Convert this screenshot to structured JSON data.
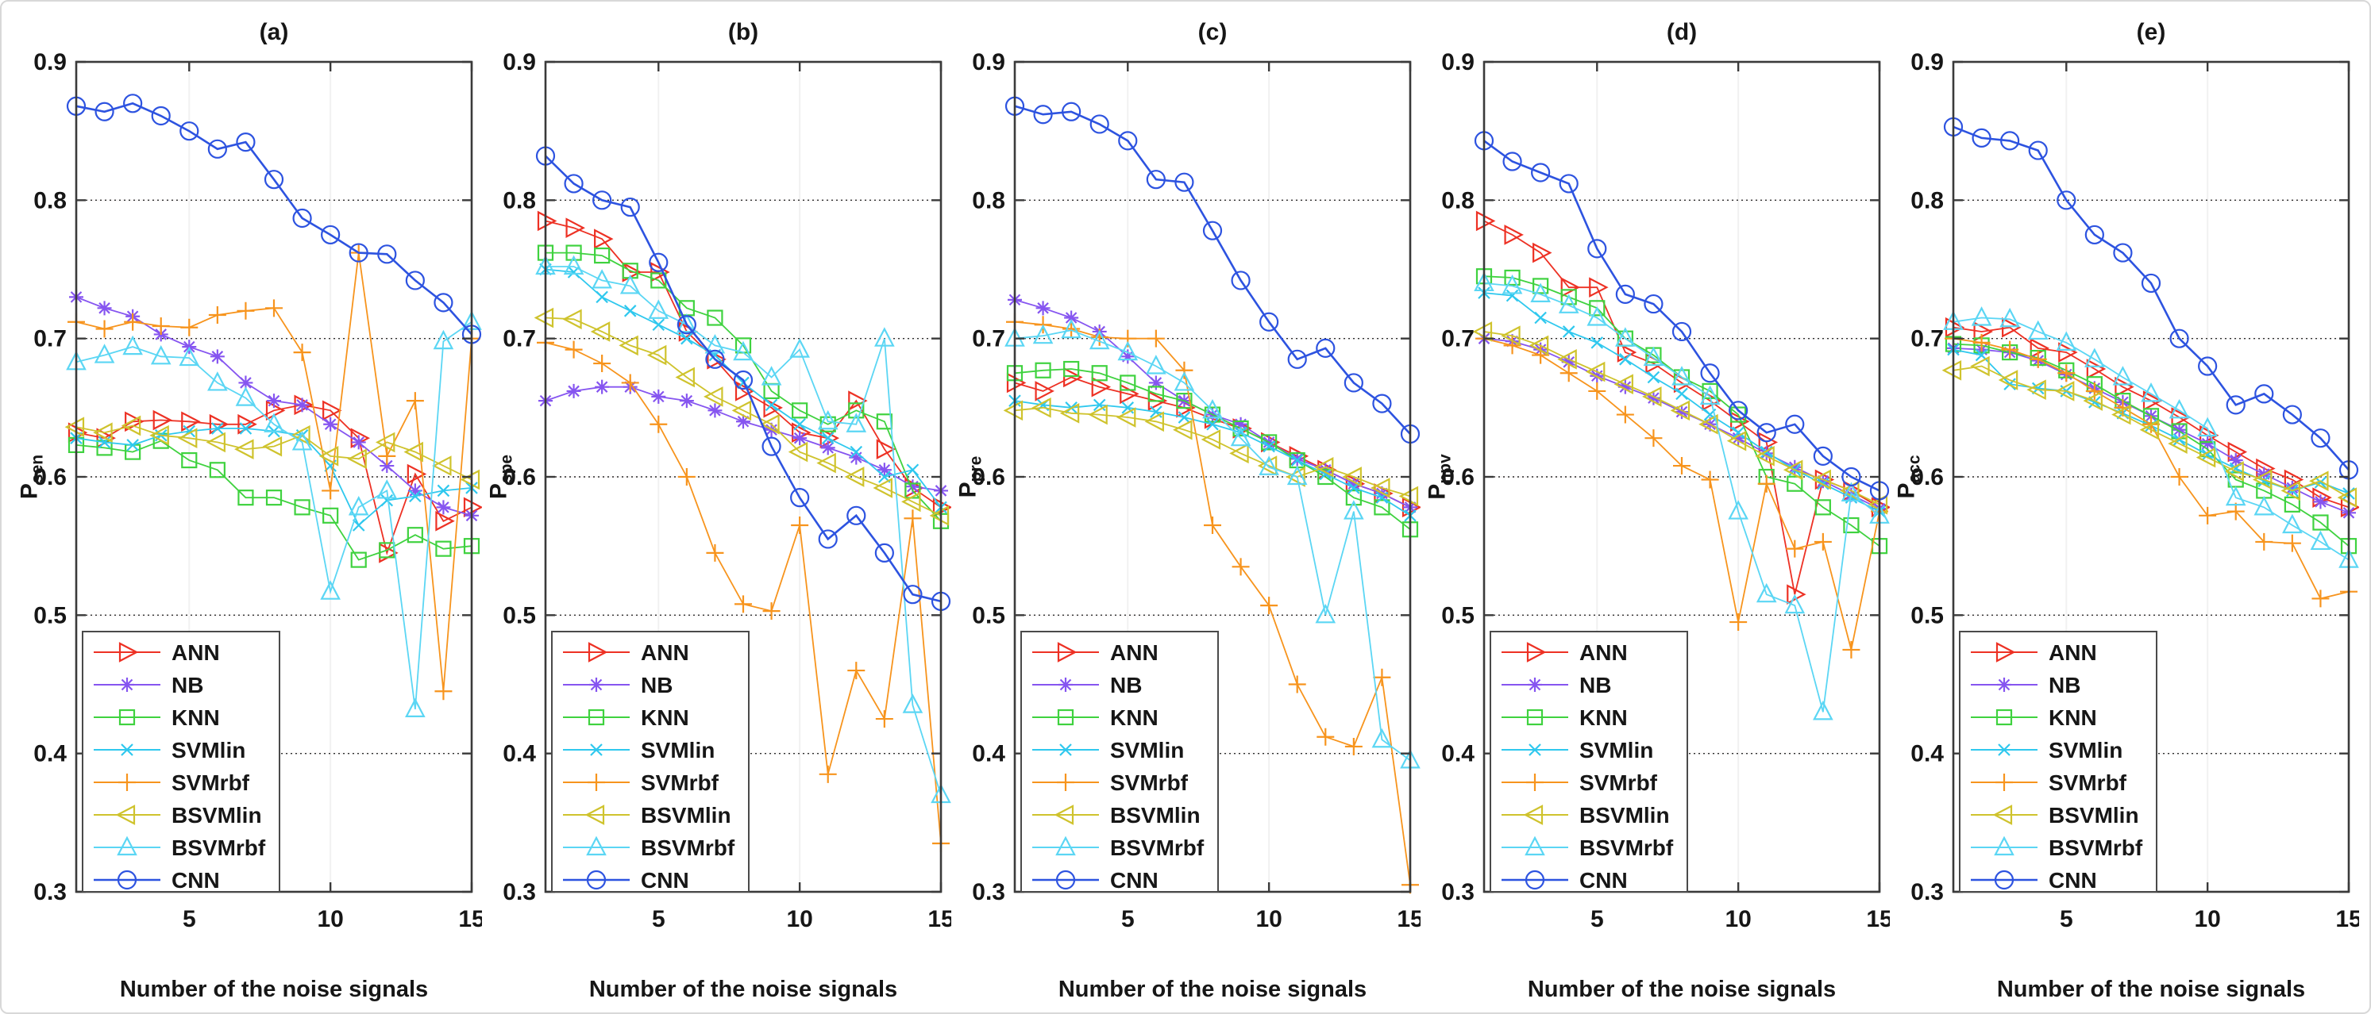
{
  "figure": {
    "background": "#ffffff",
    "border_color": "#d8d8d8"
  },
  "axes": {
    "xlabel": "Number of the noise signals",
    "xlim": [
      1,
      15
    ],
    "ylim": [
      0.3,
      0.9
    ],
    "x_ticks": [
      5,
      10,
      15
    ],
    "y_ticks": [
      0.9,
      0.8,
      0.7,
      0.6,
      0.5,
      0.4,
      0.3
    ],
    "grid_y": [
      0.8,
      0.7,
      0.6,
      0.5,
      0.4
    ],
    "grid_style": "dotted",
    "legend_position": "bottom-left"
  },
  "legend": {
    "entries": [
      "ANN",
      "NB",
      "KNN",
      "SVMlin",
      "SVMrbf",
      "BSVMlin",
      "BSVMrbf",
      "CNN"
    ]
  },
  "series_styles": [
    {
      "name": "ANN",
      "color": "#ed3124",
      "marker": "triangle-right",
      "marker_icon": "triangle-right-marker-icon"
    },
    {
      "name": "NB",
      "color": "#8655f0",
      "marker": "asterisk",
      "marker_icon": "asterisk-marker-icon"
    },
    {
      "name": "KNN",
      "color": "#3fd23f",
      "marker": "square",
      "marker_icon": "square-marker-icon"
    },
    {
      "name": "SVMlin",
      "color": "#2fc8ee",
      "marker": "x",
      "marker_icon": "x-marker-icon"
    },
    {
      "name": "SVMrbf",
      "color": "#f7941d",
      "marker": "plus",
      "marker_icon": "plus-marker-icon"
    },
    {
      "name": "BSVMlin",
      "color": "#cfc32d",
      "marker": "triangle-left",
      "marker_icon": "triangle-left-marker-icon"
    },
    {
      "name": "BSVMrbf",
      "color": "#5bd6f4",
      "marker": "triangle-up",
      "marker_icon": "triangle-up-marker-icon"
    },
    {
      "name": "CNN",
      "color": "#2d53e0",
      "marker": "circle",
      "marker_icon": "circle-marker-icon"
    }
  ],
  "chart_data": [
    {
      "type": "line",
      "title": "(a)",
      "ylabel": "P_sen",
      "ylabel_base": "P",
      "ylabel_sub": "sen",
      "xlabel": "Number of the noise signals",
      "x": [
        1,
        2,
        3,
        4,
        5,
        6,
        7,
        8,
        9,
        10,
        11,
        12,
        13,
        14,
        15
      ],
      "xlim": [
        1,
        15
      ],
      "ylim": [
        0.3,
        0.9
      ],
      "series": [
        {
          "name": "ANN",
          "values": [
            0.632,
            0.628,
            0.64,
            0.641,
            0.64,
            0.638,
            0.638,
            0.648,
            0.652,
            0.648,
            0.628,
            0.545,
            0.602,
            0.568,
            0.578
          ]
        },
        {
          "name": "NB",
          "values": [
            0.73,
            0.722,
            0.716,
            0.703,
            0.694,
            0.687,
            0.668,
            0.655,
            0.652,
            0.638,
            0.625,
            0.608,
            0.59,
            0.578,
            0.572
          ]
        },
        {
          "name": "KNN",
          "values": [
            0.623,
            0.621,
            0.618,
            0.626,
            0.612,
            0.605,
            0.585,
            0.585,
            0.578,
            0.572,
            0.54,
            0.547,
            0.558,
            0.548,
            0.55
          ]
        },
        {
          "name": "SVMlin",
          "values": [
            0.628,
            0.625,
            0.623,
            0.63,
            0.633,
            0.635,
            0.635,
            0.633,
            0.63,
            0.608,
            0.565,
            0.583,
            0.586,
            0.59,
            0.592
          ]
        },
        {
          "name": "SVMrbf",
          "values": [
            0.712,
            0.707,
            0.712,
            0.709,
            0.708,
            0.717,
            0.72,
            0.722,
            0.69,
            0.59,
            0.762,
            0.615,
            0.655,
            0.445,
            0.7
          ]
        },
        {
          "name": "BSVMlin",
          "values": [
            0.636,
            0.632,
            0.637,
            0.63,
            0.628,
            0.625,
            0.62,
            0.622,
            0.63,
            0.615,
            0.613,
            0.625,
            0.618,
            0.608,
            0.598
          ]
        },
        {
          "name": "BSVMrbf",
          "values": [
            0.683,
            0.688,
            0.694,
            0.687,
            0.686,
            0.668,
            0.657,
            0.638,
            0.625,
            0.517,
            0.578,
            0.59,
            0.432,
            0.698,
            0.712
          ]
        },
        {
          "name": "CNN",
          "values": [
            0.868,
            0.864,
            0.87,
            0.861,
            0.85,
            0.837,
            0.842,
            0.815,
            0.787,
            0.775,
            0.762,
            0.761,
            0.742,
            0.726,
            0.703
          ]
        }
      ]
    },
    {
      "type": "line",
      "title": "(b)",
      "ylabel": "P_spe",
      "ylabel_base": "P",
      "ylabel_sub": "spe",
      "xlabel": "Number of the noise signals",
      "x": [
        1,
        2,
        3,
        4,
        5,
        6,
        7,
        8,
        9,
        10,
        11,
        12,
        13,
        14,
        15
      ],
      "xlim": [
        1,
        15
      ],
      "ylim": [
        0.3,
        0.9
      ],
      "series": [
        {
          "name": "ANN",
          "values": [
            0.785,
            0.78,
            0.772,
            0.748,
            0.748,
            0.705,
            0.685,
            0.662,
            0.65,
            0.632,
            0.628,
            0.655,
            0.62,
            0.592,
            0.578
          ]
        },
        {
          "name": "NB",
          "values": [
            0.655,
            0.662,
            0.665,
            0.665,
            0.658,
            0.655,
            0.648,
            0.64,
            0.634,
            0.628,
            0.621,
            0.614,
            0.605,
            0.593,
            0.59
          ]
        },
        {
          "name": "KNN",
          "values": [
            0.762,
            0.762,
            0.76,
            0.749,
            0.742,
            0.722,
            0.715,
            0.695,
            0.662,
            0.648,
            0.638,
            0.648,
            0.64,
            0.59,
            0.568
          ]
        },
        {
          "name": "SVMlin",
          "values": [
            0.75,
            0.748,
            0.73,
            0.72,
            0.71,
            0.7,
            0.688,
            0.668,
            0.652,
            0.638,
            0.628,
            0.618,
            0.6,
            0.605,
            0.578
          ]
        },
        {
          "name": "SVMrbf",
          "values": [
            0.697,
            0.692,
            0.682,
            0.668,
            0.638,
            0.6,
            0.545,
            0.508,
            0.503,
            0.565,
            0.385,
            0.46,
            0.425,
            0.57,
            0.335
          ]
        },
        {
          "name": "BSVMlin",
          "values": [
            0.715,
            0.714,
            0.705,
            0.695,
            0.688,
            0.672,
            0.658,
            0.648,
            0.638,
            0.618,
            0.61,
            0.6,
            0.592,
            0.582,
            0.572
          ]
        },
        {
          "name": "BSVMrbf",
          "values": [
            0.752,
            0.752,
            0.742,
            0.738,
            0.72,
            0.71,
            0.695,
            0.69,
            0.672,
            0.692,
            0.64,
            0.638,
            0.7,
            0.435,
            0.37
          ]
        },
        {
          "name": "CNN",
          "values": [
            0.832,
            0.812,
            0.8,
            0.795,
            0.755,
            0.71,
            0.685,
            0.67,
            0.622,
            0.585,
            0.555,
            0.572,
            0.545,
            0.515,
            0.51
          ]
        }
      ]
    },
    {
      "type": "line",
      "title": "(c)",
      "ylabel": "P_pre",
      "ylabel_base": "P",
      "ylabel_sub": "pre",
      "xlabel": "Number of the noise signals",
      "x": [
        1,
        2,
        3,
        4,
        5,
        6,
        7,
        8,
        9,
        10,
        11,
        12,
        13,
        14,
        15
      ],
      "xlim": [
        1,
        15
      ],
      "ylim": [
        0.3,
        0.9
      ],
      "series": [
        {
          "name": "ANN",
          "values": [
            0.668,
            0.662,
            0.672,
            0.665,
            0.66,
            0.655,
            0.65,
            0.642,
            0.635,
            0.625,
            0.615,
            0.605,
            0.595,
            0.588,
            0.578
          ]
        },
        {
          "name": "NB",
          "values": [
            0.728,
            0.722,
            0.715,
            0.705,
            0.687,
            0.668,
            0.655,
            0.645,
            0.638,
            0.625,
            0.613,
            0.605,
            0.595,
            0.588,
            0.578
          ]
        },
        {
          "name": "KNN",
          "values": [
            0.675,
            0.677,
            0.678,
            0.675,
            0.668,
            0.66,
            0.655,
            0.645,
            0.635,
            0.625,
            0.612,
            0.6,
            0.585,
            0.578,
            0.562
          ]
        },
        {
          "name": "SVMlin",
          "values": [
            0.655,
            0.652,
            0.65,
            0.652,
            0.65,
            0.647,
            0.643,
            0.638,
            0.632,
            0.622,
            0.612,
            0.602,
            0.592,
            0.585,
            0.572
          ]
        },
        {
          "name": "SVMrbf",
          "values": [
            0.712,
            0.71,
            0.707,
            0.701,
            0.7,
            0.7,
            0.677,
            0.565,
            0.535,
            0.507,
            0.45,
            0.412,
            0.405,
            0.455,
            0.305
          ]
        },
        {
          "name": "BSVMlin",
          "values": [
            0.648,
            0.65,
            0.646,
            0.645,
            0.643,
            0.64,
            0.634,
            0.627,
            0.617,
            0.608,
            0.6,
            0.607,
            0.6,
            0.592,
            0.586
          ]
        },
        {
          "name": "BSVMrbf",
          "values": [
            0.7,
            0.702,
            0.706,
            0.698,
            0.69,
            0.68,
            0.668,
            0.648,
            0.628,
            0.607,
            0.6,
            0.5,
            0.575,
            0.41,
            0.395
          ]
        },
        {
          "name": "CNN",
          "values": [
            0.868,
            0.862,
            0.864,
            0.855,
            0.843,
            0.815,
            0.813,
            0.778,
            0.742,
            0.712,
            0.685,
            0.693,
            0.668,
            0.653,
            0.631
          ]
        }
      ]
    },
    {
      "type": "line",
      "title": "(d)",
      "ylabel": "P_npv",
      "ylabel_base": "P",
      "ylabel_sub": "npv",
      "xlabel": "Number of the noise signals",
      "x": [
        1,
        2,
        3,
        4,
        5,
        6,
        7,
        8,
        9,
        10,
        11,
        12,
        13,
        14,
        15
      ],
      "xlim": [
        1,
        15
      ],
      "ylim": [
        0.3,
        0.9
      ],
      "series": [
        {
          "name": "ANN",
          "values": [
            0.785,
            0.775,
            0.762,
            0.737,
            0.737,
            0.69,
            0.682,
            0.668,
            0.655,
            0.64,
            0.625,
            0.515,
            0.598,
            0.59,
            0.578
          ]
        },
        {
          "name": "NB",
          "values": [
            0.7,
            0.698,
            0.692,
            0.683,
            0.673,
            0.665,
            0.657,
            0.647,
            0.638,
            0.628,
            0.617,
            0.607,
            0.597,
            0.587,
            0.577
          ]
        },
        {
          "name": "KNN",
          "values": [
            0.745,
            0.744,
            0.738,
            0.73,
            0.722,
            0.7,
            0.688,
            0.672,
            0.662,
            0.645,
            0.6,
            0.595,
            0.578,
            0.565,
            0.55
          ]
        },
        {
          "name": "SVMlin",
          "values": [
            0.733,
            0.731,
            0.715,
            0.705,
            0.697,
            0.685,
            0.672,
            0.66,
            0.645,
            0.632,
            0.618,
            0.605,
            0.595,
            0.585,
            0.575
          ]
        },
        {
          "name": "SVMrbf",
          "values": [
            0.7,
            0.695,
            0.688,
            0.675,
            0.662,
            0.645,
            0.628,
            0.608,
            0.598,
            0.495,
            0.595,
            0.548,
            0.553,
            0.475,
            0.575
          ]
        },
        {
          "name": "BSVMlin",
          "values": [
            0.705,
            0.702,
            0.695,
            0.685,
            0.676,
            0.667,
            0.658,
            0.648,
            0.638,
            0.626,
            0.615,
            0.605,
            0.598,
            0.59,
            0.58
          ]
        },
        {
          "name": "BSVMrbf",
          "values": [
            0.74,
            0.738,
            0.732,
            0.724,
            0.715,
            0.7,
            0.686,
            0.672,
            0.658,
            0.575,
            0.515,
            0.507,
            0.43,
            0.588,
            0.572
          ]
        },
        {
          "name": "CNN",
          "values": [
            0.843,
            0.828,
            0.82,
            0.812,
            0.765,
            0.732,
            0.725,
            0.705,
            0.675,
            0.648,
            0.632,
            0.638,
            0.615,
            0.6,
            0.59
          ]
        }
      ]
    },
    {
      "type": "line",
      "title": "(e)",
      "ylabel": "P_acc",
      "ylabel_base": "P",
      "ylabel_sub": "acc",
      "xlabel": "Number of the noise signals",
      "x": [
        1,
        2,
        3,
        4,
        5,
        6,
        7,
        8,
        9,
        10,
        11,
        12,
        13,
        14,
        15
      ],
      "xlim": [
        1,
        15
      ],
      "ylim": [
        0.3,
        0.9
      ],
      "series": [
        {
          "name": "ANN",
          "values": [
            0.708,
            0.705,
            0.708,
            0.693,
            0.69,
            0.678,
            0.665,
            0.655,
            0.643,
            0.63,
            0.618,
            0.606,
            0.598,
            0.585,
            0.578
          ]
        },
        {
          "name": "NB",
          "values": [
            0.693,
            0.692,
            0.69,
            0.684,
            0.674,
            0.664,
            0.654,
            0.644,
            0.634,
            0.624,
            0.612,
            0.602,
            0.592,
            0.582,
            0.574
          ]
        },
        {
          "name": "KNN",
          "values": [
            0.696,
            0.695,
            0.69,
            0.686,
            0.677,
            0.667,
            0.655,
            0.644,
            0.633,
            0.62,
            0.598,
            0.59,
            0.58,
            0.567,
            0.55
          ]
        },
        {
          "name": "SVMlin",
          "values": [
            0.692,
            0.688,
            0.667,
            0.664,
            0.662,
            0.654,
            0.646,
            0.637,
            0.627,
            0.616,
            0.606,
            0.597,
            0.59,
            0.596,
            0.588
          ]
        },
        {
          "name": "SVMrbf",
          "values": [
            0.7,
            0.697,
            0.692,
            0.685,
            0.675,
            0.662,
            0.65,
            0.638,
            0.6,
            0.572,
            0.575,
            0.553,
            0.552,
            0.512,
            0.517
          ]
        },
        {
          "name": "BSVMlin",
          "values": [
            0.677,
            0.68,
            0.67,
            0.663,
            0.662,
            0.655,
            0.645,
            0.634,
            0.624,
            0.614,
            0.604,
            0.598,
            0.59,
            0.597,
            0.585
          ]
        },
        {
          "name": "BSVMrbf",
          "values": [
            0.712,
            0.715,
            0.714,
            0.705,
            0.697,
            0.685,
            0.672,
            0.66,
            0.648,
            0.635,
            0.585,
            0.578,
            0.565,
            0.553,
            0.54
          ]
        },
        {
          "name": "CNN",
          "values": [
            0.853,
            0.845,
            0.843,
            0.836,
            0.8,
            0.775,
            0.762,
            0.74,
            0.7,
            0.68,
            0.652,
            0.66,
            0.645,
            0.628,
            0.605
          ]
        }
      ]
    }
  ]
}
